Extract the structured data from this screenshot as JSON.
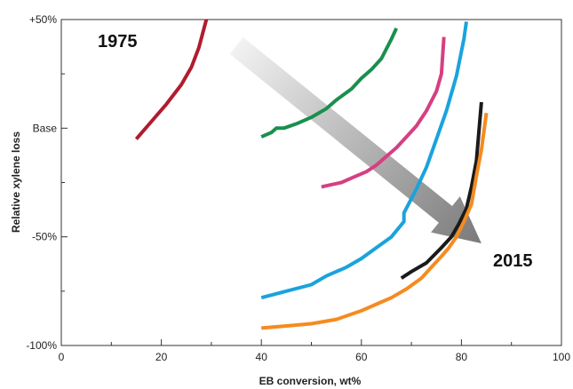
{
  "chart_data": {
    "type": "line",
    "xlabel": "EB conversion, wt%",
    "ylabel": "Relative xylene loss",
    "xlim": [
      0,
      100
    ],
    "ylim": [
      -100,
      50
    ],
    "x_ticks": [
      0,
      20,
      40,
      60,
      80,
      100
    ],
    "x_tick_labels": [
      "0",
      "20",
      "40",
      "60",
      "80",
      "100"
    ],
    "y_ticks": [
      50,
      0,
      -50,
      -100
    ],
    "y_tick_labels": [
      "+50%",
      "Base",
      "-50%",
      "-100%"
    ],
    "grid": false,
    "legend": "none",
    "annotations": {
      "start_label": "1975",
      "end_label": "2015",
      "trend_arrow": {
        "from": [
          35,
          38
        ],
        "to": [
          84,
          -53
        ],
        "color_start": "#f2f2f2",
        "color_end": "#7a7a7a"
      }
    },
    "series": [
      {
        "color": "#b01c2e",
        "points": [
          [
            15,
            -5
          ],
          [
            18,
            3
          ],
          [
            21,
            11
          ],
          [
            24,
            20
          ],
          [
            26,
            28
          ],
          [
            27.5,
            37
          ],
          [
            29,
            50
          ]
        ]
      },
      {
        "color": "#1a8f4e",
        "points": [
          [
            40,
            -4
          ],
          [
            42,
            -2
          ],
          [
            43,
            0
          ],
          [
            44.5,
            0
          ],
          [
            47,
            2
          ],
          [
            50,
            5
          ],
          [
            53,
            9
          ],
          [
            55,
            13
          ],
          [
            58,
            18
          ],
          [
            60,
            23
          ],
          [
            62,
            27
          ],
          [
            64,
            32
          ],
          [
            66,
            41
          ],
          [
            67,
            46
          ]
        ]
      },
      {
        "color": "#d63f82",
        "points": [
          [
            52,
            -27
          ],
          [
            54,
            -26
          ],
          [
            56,
            -25
          ],
          [
            58,
            -23
          ],
          [
            61,
            -20
          ],
          [
            63,
            -17
          ],
          [
            65,
            -13
          ],
          [
            67,
            -9
          ],
          [
            69,
            -4
          ],
          [
            71,
            1
          ],
          [
            73,
            8
          ],
          [
            75,
            17
          ],
          [
            76,
            25
          ],
          [
            76.5,
            42
          ]
        ]
      },
      {
        "color": "#1aa3dc",
        "points": [
          [
            40,
            -78
          ],
          [
            45,
            -75
          ],
          [
            50,
            -72
          ],
          [
            53,
            -68
          ],
          [
            57,
            -64
          ],
          [
            60,
            -60
          ],
          [
            63,
            -55
          ],
          [
            66,
            -50
          ],
          [
            68.5,
            -43
          ],
          [
            68.5,
            -39
          ],
          [
            71,
            -28
          ],
          [
            73,
            -18
          ],
          [
            75,
            -5
          ],
          [
            77,
            8
          ],
          [
            79,
            24
          ],
          [
            80.5,
            41
          ],
          [
            81,
            49
          ]
        ]
      },
      {
        "color": "#1a1a1a",
        "points": [
          [
            68,
            -69
          ],
          [
            70,
            -66
          ],
          [
            73,
            -62
          ],
          [
            76,
            -55
          ],
          [
            78,
            -50
          ],
          [
            79.5,
            -44
          ],
          [
            81,
            -37
          ],
          [
            82,
            -27
          ],
          [
            83,
            -15
          ],
          [
            84,
            12
          ]
        ]
      },
      {
        "color": "#f58b20",
        "points": [
          [
            40,
            -92
          ],
          [
            45,
            -91
          ],
          [
            50,
            -90
          ],
          [
            55,
            -88
          ],
          [
            60,
            -84
          ],
          [
            63,
            -81
          ],
          [
            66,
            -78
          ],
          [
            69,
            -74
          ],
          [
            72,
            -69
          ],
          [
            74,
            -64
          ],
          [
            76,
            -59
          ],
          [
            77.5,
            -55
          ],
          [
            79,
            -50
          ],
          [
            80.5,
            -43
          ],
          [
            82,
            -35
          ],
          [
            83,
            -22
          ],
          [
            84,
            -10
          ],
          [
            85,
            7
          ]
        ]
      }
    ]
  }
}
